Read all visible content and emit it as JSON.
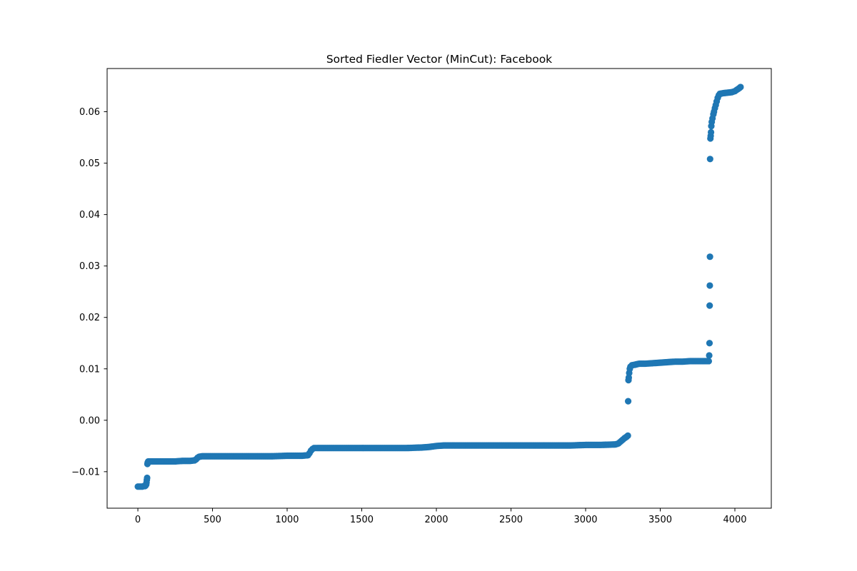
{
  "chart_data": {
    "type": "scatter",
    "title": "Sorted Fiedler Vector (MinCut): Facebook",
    "xlabel": "",
    "ylabel": "",
    "xlim": [
      -206,
      4244
    ],
    "ylim": [
      -0.0171,
      0.0684
    ],
    "xticks": [
      0,
      500,
      1000,
      1500,
      2000,
      2500,
      3000,
      3500,
      4000
    ],
    "xtick_labels": [
      "0",
      "500",
      "1000",
      "1500",
      "2000",
      "2500",
      "3000",
      "3500",
      "4000"
    ],
    "yticks": [
      -0.01,
      0.0,
      0.01,
      0.02,
      0.03,
      0.04,
      0.05,
      0.06
    ],
    "ytick_labels": [
      "−0.01",
      "0.00",
      "0.01",
      "0.02",
      "0.03",
      "0.04",
      "0.05",
      "0.06"
    ],
    "grid": false,
    "marker_color": "#1f77b4",
    "points": [
      [
        0,
        -0.0129
      ],
      [
        10,
        -0.0129
      ],
      [
        20,
        -0.0129
      ],
      [
        30,
        -0.0129
      ],
      [
        40,
        -0.0128
      ],
      [
        48,
        -0.0128
      ],
      [
        52,
        -0.0127
      ],
      [
        56,
        -0.0125
      ],
      [
        58,
        -0.0121
      ],
      [
        60,
        -0.0116
      ],
      [
        62,
        -0.0112
      ],
      [
        64,
        -0.0085
      ],
      [
        66,
        -0.0082
      ],
      [
        70,
        -0.008
      ],
      [
        100,
        -0.008
      ],
      [
        150,
        -0.008
      ],
      [
        200,
        -0.008
      ],
      [
        250,
        -0.008
      ],
      [
        300,
        -0.0079
      ],
      [
        350,
        -0.0079
      ],
      [
        380,
        -0.0078
      ],
      [
        390,
        -0.0076
      ],
      [
        400,
        -0.0073
      ],
      [
        410,
        -0.0071
      ],
      [
        430,
        -0.007
      ],
      [
        500,
        -0.007
      ],
      [
        600,
        -0.007
      ],
      [
        700,
        -0.007
      ],
      [
        800,
        -0.007
      ],
      [
        900,
        -0.007
      ],
      [
        1000,
        -0.0069
      ],
      [
        1100,
        -0.0069
      ],
      [
        1140,
        -0.0068
      ],
      [
        1150,
        -0.0064
      ],
      [
        1160,
        -0.0059
      ],
      [
        1170,
        -0.0056
      ],
      [
        1180,
        -0.0054
      ],
      [
        1200,
        -0.0054
      ],
      [
        1300,
        -0.0054
      ],
      [
        1400,
        -0.0054
      ],
      [
        1500,
        -0.0054
      ],
      [
        1600,
        -0.0054
      ],
      [
        1700,
        -0.0054
      ],
      [
        1800,
        -0.0054
      ],
      [
        1900,
        -0.0053
      ],
      [
        1950,
        -0.0052
      ],
      [
        2000,
        -0.005
      ],
      [
        2050,
        -0.0049
      ],
      [
        2100,
        -0.0049
      ],
      [
        2200,
        -0.0049
      ],
      [
        2300,
        -0.0049
      ],
      [
        2400,
        -0.0049
      ],
      [
        2500,
        -0.0049
      ],
      [
        2600,
        -0.0049
      ],
      [
        2700,
        -0.0049
      ],
      [
        2800,
        -0.0049
      ],
      [
        2900,
        -0.0049
      ],
      [
        3000,
        -0.0048
      ],
      [
        3100,
        -0.0048
      ],
      [
        3200,
        -0.0047
      ],
      [
        3220,
        -0.0045
      ],
      [
        3240,
        -0.004
      ],
      [
        3260,
        -0.0035
      ],
      [
        3275,
        -0.0032
      ],
      [
        3283,
        -0.003
      ],
      [
        3285,
        0.0037
      ],
      [
        3287,
        0.0078
      ],
      [
        3289,
        0.0083
      ],
      [
        3292,
        0.0092
      ],
      [
        3296,
        0.01
      ],
      [
        3300,
        0.0104
      ],
      [
        3310,
        0.0107
      ],
      [
        3330,
        0.0108
      ],
      [
        3360,
        0.011
      ],
      [
        3400,
        0.011
      ],
      [
        3450,
        0.0111
      ],
      [
        3500,
        0.0112
      ],
      [
        3550,
        0.0113
      ],
      [
        3600,
        0.0114
      ],
      [
        3650,
        0.0114
      ],
      [
        3700,
        0.0115
      ],
      [
        3750,
        0.0115
      ],
      [
        3800,
        0.0115
      ],
      [
        3825,
        0.0115
      ],
      [
        3828,
        0.0126
      ],
      [
        3830,
        0.015
      ],
      [
        3831,
        0.0223
      ],
      [
        3832,
        0.0262
      ],
      [
        3833,
        0.0318
      ],
      [
        3834,
        0.0508
      ],
      [
        3836,
        0.0548
      ],
      [
        3838,
        0.0553
      ],
      [
        3840,
        0.056
      ],
      [
        3842,
        0.0572
      ],
      [
        3845,
        0.058
      ],
      [
        3850,
        0.0587
      ],
      [
        3856,
        0.0595
      ],
      [
        3860,
        0.06
      ],
      [
        3866,
        0.0607
      ],
      [
        3872,
        0.0613
      ],
      [
        3878,
        0.062
      ],
      [
        3885,
        0.0627
      ],
      [
        3892,
        0.0632
      ],
      [
        3900,
        0.0635
      ],
      [
        3920,
        0.0636
      ],
      [
        3950,
        0.0637
      ],
      [
        3980,
        0.0638
      ],
      [
        4000,
        0.064
      ],
      [
        4010,
        0.0642
      ],
      [
        4020,
        0.0644
      ],
      [
        4030,
        0.0646
      ],
      [
        4038,
        0.0648
      ]
    ]
  }
}
